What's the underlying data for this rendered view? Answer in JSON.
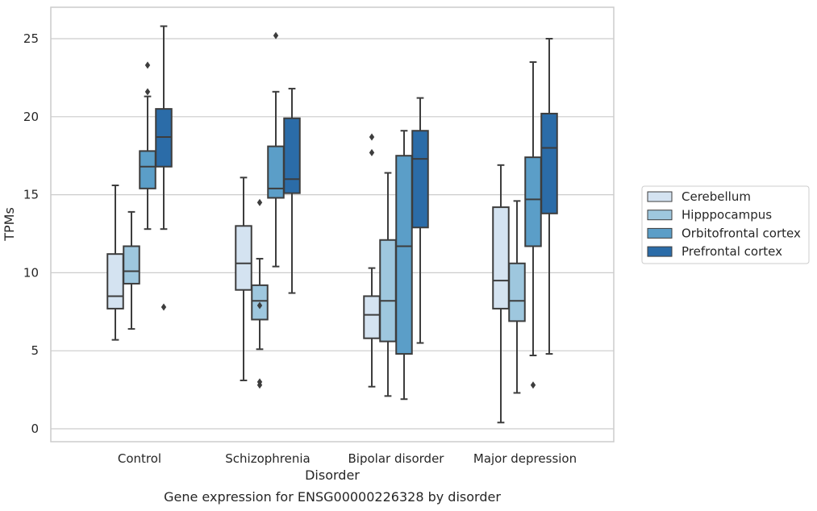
{
  "chart_data": {
    "type": "box",
    "xlabel": "Disorder",
    "ylabel": "TPMs",
    "caption": "Gene expression for ENSG00000226328 by disorder",
    "categories": [
      "Control",
      "Schizophrenia",
      "Bipolar disorder",
      "Major depression"
    ],
    "ylim": [
      -0.8,
      27
    ],
    "yticks": [
      0,
      5,
      10,
      15,
      20,
      25
    ],
    "grid": "horizontal",
    "legend_position": "right",
    "series": [
      {
        "name": "Cerebellum",
        "color": "#d4e3f1",
        "boxes": [
          {
            "whislo": 5.7,
            "q1": 7.7,
            "med": 8.5,
            "q3": 11.2,
            "whishi": 15.6,
            "fliers": []
          },
          {
            "whislo": 3.1,
            "q1": 8.9,
            "med": 10.6,
            "q3": 13.0,
            "whishi": 16.1,
            "fliers": []
          },
          {
            "whislo": 2.7,
            "q1": 5.8,
            "med": 7.3,
            "q3": 8.5,
            "whishi": 10.3,
            "fliers": [
              17.7,
              18.7
            ]
          },
          {
            "whislo": 0.4,
            "q1": 7.7,
            "med": 9.5,
            "q3": 14.2,
            "whishi": 16.9,
            "fliers": []
          }
        ]
      },
      {
        "name": "Hipppocampus",
        "color": "#9ec7de",
        "boxes": [
          {
            "whislo": 6.4,
            "q1": 9.3,
            "med": 10.1,
            "q3": 11.7,
            "whishi": 13.9,
            "fliers": []
          },
          {
            "whislo": 5.1,
            "q1": 7.0,
            "med": 8.2,
            "q3": 9.2,
            "whishi": 10.9,
            "fliers": [
              2.8,
              3.0,
              7.9,
              14.5
            ]
          },
          {
            "whislo": 2.1,
            "q1": 5.6,
            "med": 8.2,
            "q3": 12.1,
            "whishi": 16.4,
            "fliers": []
          },
          {
            "whislo": 2.3,
            "q1": 6.9,
            "med": 8.2,
            "q3": 10.6,
            "whishi": 14.6,
            "fliers": []
          }
        ]
      },
      {
        "name": "Orbitofrontal cortex",
        "color": "#5b9ec8",
        "boxes": [
          {
            "whislo": 12.8,
            "q1": 15.4,
            "med": 16.8,
            "q3": 17.8,
            "whishi": 21.3,
            "fliers": [
              21.6,
              23.3
            ]
          },
          {
            "whislo": 10.4,
            "q1": 14.8,
            "med": 15.4,
            "q3": 18.1,
            "whishi": 21.6,
            "fliers": [
              25.2
            ]
          },
          {
            "whislo": 1.9,
            "q1": 4.8,
            "med": 11.7,
            "q3": 17.5,
            "whishi": 19.1,
            "fliers": []
          },
          {
            "whislo": 4.7,
            "q1": 11.7,
            "med": 14.7,
            "q3": 17.4,
            "whishi": 23.5,
            "fliers": [
              2.8
            ]
          }
        ]
      },
      {
        "name": "Prefrontal cortex",
        "color": "#2b6ca8",
        "boxes": [
          {
            "whislo": 12.8,
            "q1": 16.8,
            "med": 18.7,
            "q3": 20.5,
            "whishi": 25.8,
            "fliers": [
              7.8
            ]
          },
          {
            "whislo": 8.7,
            "q1": 15.1,
            "med": 16.0,
            "q3": 19.9,
            "whishi": 21.8,
            "fliers": []
          },
          {
            "whislo": 5.5,
            "q1": 12.9,
            "med": 17.3,
            "q3": 19.1,
            "whishi": 21.2,
            "fliers": []
          },
          {
            "whislo": 4.8,
            "q1": 13.8,
            "med": 18.0,
            "q3": 20.2,
            "whishi": 25.0,
            "fliers": []
          }
        ]
      }
    ]
  }
}
